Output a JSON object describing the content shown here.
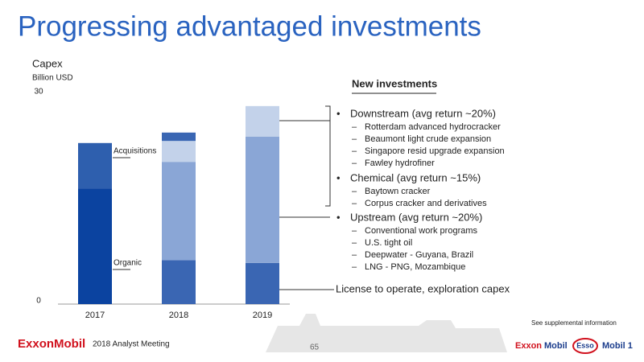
{
  "slide": {
    "title": "Progressing advantaged investments",
    "brand": "ExxonMobil",
    "meeting": "2018 Analyst Meeting",
    "page_number": "65",
    "supplemental": "See supplemental information",
    "logos": [
      "Exxon",
      "Mobil",
      "Esso",
      "Mobil 1"
    ]
  },
  "chart_data": {
    "type": "stacked_bar",
    "y_label": "Capex",
    "y_unit": "Billion USD",
    "categories": [
      "2017",
      "2018",
      "2019"
    ],
    "ylim": [
      0,
      30
    ],
    "yticks": [
      0,
      30
    ],
    "series": [
      {
        "values": [
          16.6,
          6.3,
          5.9
        ],
        "colors": [
          "#0b43a0",
          "#3a66b3",
          "#3a66b3"
        ]
      },
      {
        "values": [
          6.5,
          14.1,
          18.1
        ],
        "colors": [
          "#2e5fae",
          "#8aa6d6",
          "#8aa6d6"
        ]
      },
      {
        "values": [
          null,
          3.0,
          4.4
        ],
        "colors": [
          null,
          "#c3d2ea",
          "#c3d2ea"
        ]
      },
      {
        "values": [
          null,
          1.2,
          null
        ],
        "colors": [
          null,
          "#3a66b3",
          null
        ]
      }
    ],
    "annotations": [
      "Acquisitions",
      "Organic"
    ]
  },
  "panel": {
    "heading": "New investments",
    "groups": [
      {
        "label": "Downstream (avg return ~20%)",
        "items": [
          "Rotterdam advanced hydrocracker",
          "Beaumont light crude expansion",
          "Singapore resid upgrade expansion",
          "Fawley hydrofiner"
        ]
      },
      {
        "label": "Chemical (avg return ~15%)",
        "items": [
          "Baytown cracker",
          "Corpus cracker and derivatives"
        ]
      },
      {
        "label": "Upstream (avg return ~20%)",
        "items": [
          "Conventional work programs",
          "U.S. tight oil",
          "Deepwater - Guyana, Brazil",
          "LNG - PNG, Mozambique"
        ]
      }
    ],
    "license": "License to operate, exploration capex"
  }
}
